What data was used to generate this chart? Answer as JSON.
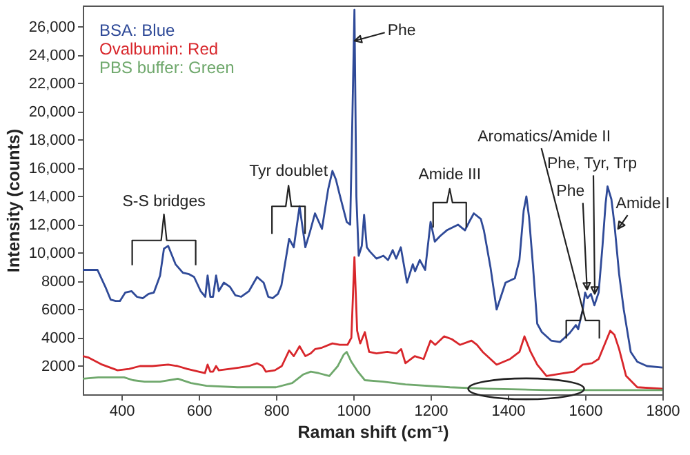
{
  "chart_data": {
    "type": "line",
    "xlabel": "Raman shift (cm⁻¹)",
    "ylabel": "Intensity (counts)",
    "xlim": [
      300,
      1800
    ],
    "ylim": [
      0,
      27500
    ],
    "xticks": [
      400,
      600,
      800,
      1000,
      1200,
      1400,
      1600,
      1800
    ],
    "yticks": [
      2000,
      4000,
      6000,
      8000,
      {
        "value": 10000,
        "label": "10,000"
      },
      {
        "value": 12000,
        "label": "12,000"
      },
      {
        "value": 14000,
        "label": "14,000"
      },
      {
        "value": 16000,
        "label": "16,000"
      },
      {
        "value": 18000,
        "label": "18,000"
      },
      {
        "value": 20000,
        "label": "20,000"
      },
      {
        "value": 22000,
        "label": "22,000"
      },
      {
        "value": 24000,
        "label": "24,000"
      },
      {
        "value": 26000,
        "label": "26,000"
      }
    ],
    "legend": "top left",
    "series": [
      {
        "name": "BSA: Blue",
        "color": "#2f4a98",
        "x": [
          300,
          315,
          338,
          360,
          372,
          385,
          396,
          410,
          426,
          440,
          455,
          470,
          484,
          500,
          510,
          521,
          540,
          559,
          575,
          588,
          605,
          617,
          623,
          630,
          637,
          645,
          652,
          665,
          681,
          695,
          710,
          730,
          751,
          768,
          780,
          791,
          805,
          814,
          834,
          846,
          861,
          876,
          888,
          901,
          919,
          935,
          946,
          955,
          965,
          983,
          992,
          998,
          1003,
          1008,
          1014,
          1022,
          1028,
          1035,
          1043,
          1060,
          1078,
          1090,
          1102,
          1111,
          1123,
          1139,
          1154,
          1160,
          1172,
          1186,
          1200,
          1211,
          1225,
          1242,
          1271,
          1289,
          1300,
          1312,
          1330,
          1338,
          1355,
          1371,
          1394,
          1418,
          1430,
          1441,
          1448,
          1455,
          1465,
          1476,
          1488,
          1512,
          1535,
          1559,
          1576,
          1582,
          1594,
          1600,
          1606,
          1615,
          1624,
          1635,
          1645,
          1653,
          1658,
          1668,
          1676,
          1688,
          1700,
          1718,
          1735,
          1760,
          1800
        ],
        "values": [
          8800,
          8800,
          8800,
          7500,
          6700,
          6600,
          6600,
          7200,
          7300,
          6900,
          6800,
          7100,
          7200,
          8400,
          10300,
          10500,
          9200,
          8600,
          8500,
          8300,
          7300,
          6900,
          8400,
          6900,
          6900,
          8400,
          7300,
          7900,
          7600,
          7000,
          6900,
          7300,
          8300,
          7900,
          6900,
          6800,
          7100,
          7700,
          11000,
          10400,
          13300,
          10400,
          11500,
          12800,
          11700,
          14500,
          15800,
          15200,
          14100,
          12200,
          12000,
          20000,
          27200,
          14000,
          9800,
          10500,
          12700,
          10400,
          10100,
          9600,
          9800,
          9500,
          10200,
          9600,
          10400,
          7900,
          9200,
          8700,
          9500,
          8800,
          12200,
          10800,
          11200,
          11600,
          12000,
          11600,
          12200,
          12800,
          12400,
          11600,
          9000,
          6000,
          7900,
          8200,
          9500,
          13000,
          14000,
          12500,
          9100,
          5000,
          4400,
          3800,
          3700,
          4300,
          4900,
          4600,
          6000,
          7200,
          6800,
          7100,
          6300,
          7200,
          10500,
          13500,
          14700,
          13800,
          12000,
          8500,
          6000,
          3000,
          2300,
          2000,
          1900
        ]
      },
      {
        "name": "Ovalbumin: Red",
        "color": "#d8262b",
        "x": [
          300,
          315,
          350,
          390,
          420,
          448,
          480,
          521,
          545,
          570,
          600,
          616,
          623,
          630,
          637,
          645,
          652,
          680,
          706,
          730,
          751,
          765,
          774,
          797,
          815,
          834,
          846,
          861,
          876,
          890,
          901,
          919,
          946,
          965,
          985,
          995,
          1003,
          1010,
          1018,
          1030,
          1041,
          1060,
          1088,
          1112,
          1124,
          1135,
          1159,
          1182,
          1200,
          1212,
          1235,
          1255,
          1276,
          1306,
          1320,
          1335,
          1371,
          1406,
          1430,
          1443,
          1459,
          1476,
          1500,
          1547,
          1571,
          1594,
          1618,
          1635,
          1650,
          1665,
          1676,
          1688,
          1706,
          1735,
          1800
        ],
        "values": [
          2700,
          2600,
          2100,
          1700,
          1800,
          2000,
          2000,
          2100,
          2000,
          1800,
          1600,
          1500,
          2100,
          1600,
          1600,
          2000,
          1700,
          1800,
          1900,
          2000,
          2200,
          2000,
          1600,
          1700,
          2000,
          3100,
          2700,
          3400,
          2700,
          2900,
          3200,
          3300,
          3600,
          3500,
          3500,
          4000,
          9700,
          4500,
          3600,
          4400,
          3000,
          2900,
          3000,
          2900,
          3200,
          2200,
          2700,
          2500,
          3800,
          3500,
          4100,
          3900,
          3500,
          3800,
          3500,
          3000,
          2100,
          2500,
          3000,
          4100,
          3000,
          2100,
          1300,
          1500,
          1600,
          2100,
          2200,
          2500,
          3500,
          4500,
          4200,
          3200,
          1300,
          500,
          400
        ]
      },
      {
        "name": "PBS buffer: Green",
        "color": "#6fa86c",
        "x": [
          300,
          340,
          380,
          407,
          430,
          460,
          500,
          546,
          580,
          620,
          700,
          800,
          842,
          870,
          890,
          910,
          938,
          960,
          975,
          983,
          995,
          1012,
          1030,
          1077,
          1135,
          1250,
          1347,
          1500,
          1650,
          1800
        ],
        "values": [
          1100,
          1200,
          1200,
          1200,
          1000,
          900,
          900,
          1100,
          800,
          600,
          500,
          500,
          800,
          1400,
          1600,
          1500,
          1300,
          2000,
          2800,
          3000,
          2300,
          1600,
          1000,
          900,
          700,
          500,
          400,
          300,
          300,
          300
        ]
      }
    ],
    "annotations": [
      {
        "text": "S-S bridges",
        "x": 510,
        "y": 10300
      },
      {
        "text": "Tyr doublet",
        "x": 861,
        "y": 13300
      },
      {
        "text": "Amide III",
        "x": 1271,
        "y": 12000
      },
      {
        "text": "Aromatics/Amide II",
        "x": 1594,
        "y": 6000
      },
      {
        "text": "Phe",
        "x": 1003,
        "y": 25000
      },
      {
        "text": "Phe",
        "x": 1605,
        "y": 7400
      },
      {
        "text": "Phe, Tyr, Trp",
        "x": 1625,
        "y": 7100
      },
      {
        "text": "Amide I",
        "x": 1685,
        "y": 11700
      }
    ]
  }
}
